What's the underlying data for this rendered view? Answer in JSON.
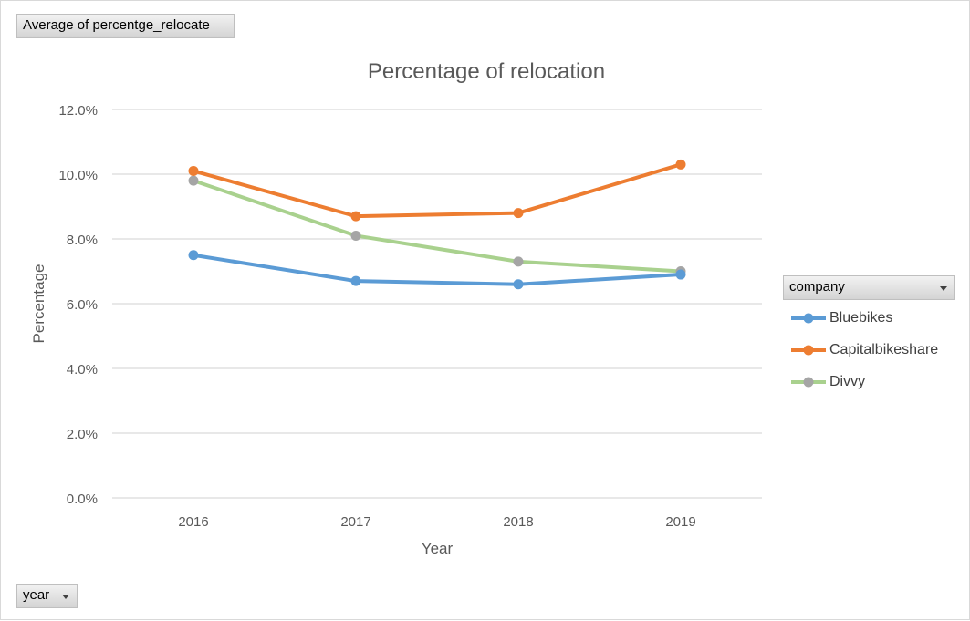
{
  "value_field": {
    "label": "Average of percentge_relocate"
  },
  "axis_field": {
    "label": "year"
  },
  "legend_field": {
    "label": "company"
  },
  "chart_data": {
    "type": "line",
    "title": "Percentage of relocation",
    "xlabel": "Year",
    "ylabel": "Percentage",
    "categories": [
      "2016",
      "2017",
      "2018",
      "2019"
    ],
    "ylim": [
      0,
      0.12
    ],
    "yticks": [
      0,
      0.02,
      0.04,
      0.06,
      0.08,
      0.1,
      0.12
    ],
    "ytick_labels": [
      "0.0%",
      "2.0%",
      "4.0%",
      "6.0%",
      "8.0%",
      "10.0%",
      "12.0%"
    ],
    "grid": true,
    "legend_position": "right",
    "series": [
      {
        "name": "Bluebikes",
        "color": "#5B9BD5",
        "marker_color": "#5B9BD5",
        "values": [
          0.075,
          0.067,
          0.066,
          0.069
        ]
      },
      {
        "name": "Capitalbikeshare",
        "color": "#ED7D31",
        "marker_color": "#ED7D31",
        "values": [
          0.101,
          0.087,
          0.088,
          0.103
        ]
      },
      {
        "name": "Divvy",
        "color": "#A9D18E",
        "marker_color": "#A5A5A5",
        "values": [
          0.098,
          0.081,
          0.073,
          0.07
        ]
      }
    ]
  }
}
